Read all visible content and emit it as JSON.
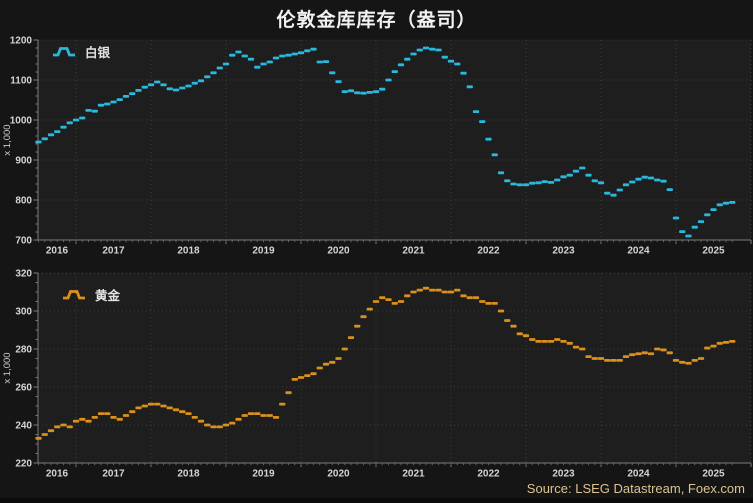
{
  "title": "伦敦金库库存（盎司）",
  "source": "Source: LSEG Datastream, Foex.com",
  "colors": {
    "background": "#151515",
    "panel_background": "#1e1e1e",
    "grid": "#3d3d3d",
    "axis": "#7a7a7a",
    "tick_text": "#d5d5d5",
    "title_text": "#f2f2f2",
    "source_text": "#dcc390",
    "silver": "#2ab8dc",
    "gold": "#d9901c"
  },
  "chart_data": [
    {
      "type": "line",
      "name": "白银",
      "marker_style": "horizontal-dash",
      "color": "#2ab8dc",
      "unit_label": "x 1,000",
      "x_start": "2016-07",
      "x_freq": "monthly",
      "x_tick_years": [
        "2016",
        "2017",
        "2018",
        "2019",
        "2020",
        "2021",
        "2022",
        "2023",
        "2024",
        "2025"
      ],
      "ylim": [
        700,
        1200
      ],
      "yticks": [
        700,
        800,
        900,
        1000,
        1100,
        1200
      ],
      "y_minor_step": 20,
      "grid": "dotted",
      "legend_position": "top-left",
      "values": [
        945,
        953,
        963,
        971,
        982,
        993,
        1000,
        1005,
        1024,
        1022,
        1037,
        1040,
        1045,
        1051,
        1059,
        1066,
        1074,
        1082,
        1088,
        1095,
        1088,
        1078,
        1075,
        1080,
        1085,
        1092,
        1098,
        1108,
        1118,
        1130,
        1140,
        1162,
        1170,
        1160,
        1152,
        1132,
        1140,
        1145,
        1155,
        1160,
        1162,
        1165,
        1168,
        1173,
        1177,
        1145,
        1146,
        1118,
        1096,
        1071,
        1073,
        1068,
        1067,
        1069,
        1071,
        1077,
        1100,
        1121,
        1138,
        1152,
        1165,
        1175,
        1180,
        1177,
        1175,
        1157,
        1147,
        1140,
        1117,
        1083,
        1021,
        996,
        952,
        913,
        868,
        848,
        840,
        838,
        838,
        842,
        843,
        846,
        844,
        850,
        858,
        862,
        872,
        880,
        862,
        848,
        843,
        817,
        812,
        825,
        838,
        845,
        852,
        857,
        855,
        850,
        847,
        826,
        755,
        721,
        710,
        732,
        746,
        763,
        776,
        788,
        792,
        794
      ]
    },
    {
      "type": "line",
      "name": "黄金",
      "marker_style": "horizontal-dash",
      "color": "#d9901c",
      "unit_label": "x 1,000",
      "x_start": "2016-07",
      "x_freq": "monthly",
      "x_tick_years": [
        "2016",
        "2017",
        "2018",
        "2019",
        "2020",
        "2021",
        "2022",
        "2023",
        "2024",
        "2025"
      ],
      "ylim": [
        220,
        320
      ],
      "yticks": [
        220,
        240,
        260,
        280,
        300,
        320
      ],
      "y_minor_step": 5,
      "grid": "dotted",
      "legend_position": "top-left",
      "values": [
        233,
        235,
        237,
        239,
        240,
        239,
        242,
        243,
        242,
        244,
        246,
        246,
        244,
        243,
        245,
        247,
        249,
        250,
        251,
        251,
        250,
        249,
        248,
        247,
        246,
        244,
        242,
        240,
        239,
        239,
        240,
        241,
        243,
        245,
        246,
        246,
        245,
        245,
        244,
        251,
        257,
        264,
        265,
        266,
        267,
        270,
        272,
        273,
        275,
        280,
        286,
        292,
        297,
        301,
        305,
        307,
        306,
        304,
        305,
        308,
        310,
        311,
        312,
        311,
        311,
        310,
        310,
        311,
        308,
        307,
        307,
        305,
        304,
        304,
        300,
        295,
        292,
        288,
        287,
        285,
        284,
        284,
        284,
        285,
        284,
        283,
        281,
        280,
        276,
        275,
        275,
        274,
        274,
        274,
        276,
        277,
        277.5,
        278,
        277.5,
        280,
        279.5,
        278,
        274,
        273,
        272.5,
        274,
        275,
        280.5,
        281.5,
        283,
        283.5,
        284
      ]
    }
  ]
}
